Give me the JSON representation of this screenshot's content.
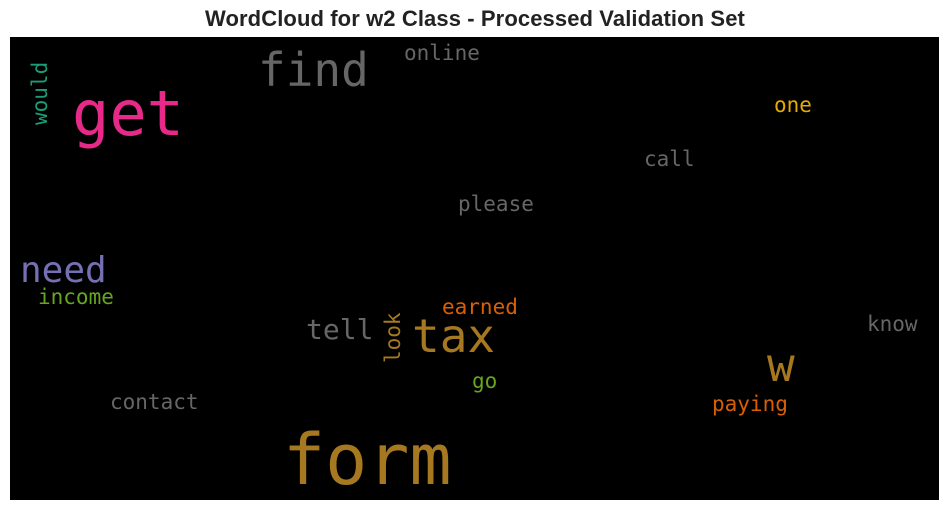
{
  "chart_data": {
    "type": "wordcloud",
    "title": "WordCloud for w2 Class - Processed Validation Set",
    "background": "#000000",
    "words": [
      {
        "text": "form",
        "color": "#a67820",
        "weight": 1.0,
        "vertical": false
      },
      {
        "text": "get",
        "color": "#e7298a",
        "weight": 0.85,
        "vertical": false
      },
      {
        "text": "tax",
        "color": "#a67820",
        "weight": 0.6,
        "vertical": false
      },
      {
        "text": "find",
        "color": "#666666",
        "weight": 0.58,
        "vertical": false
      },
      {
        "text": "w",
        "color": "#a67820",
        "weight": 0.57,
        "vertical": false
      },
      {
        "text": "need",
        "color": "#7570b3",
        "weight": 0.45,
        "vertical": false
      },
      {
        "text": "tell",
        "color": "#666666",
        "weight": 0.36,
        "vertical": false
      },
      {
        "text": "online",
        "color": "#666666",
        "weight": 0.28,
        "vertical": false
      },
      {
        "text": "would",
        "color": "#1b9e77",
        "weight": 0.28,
        "vertical": true
      },
      {
        "text": "one",
        "color": "#e6ab02",
        "weight": 0.28,
        "vertical": false
      },
      {
        "text": "call",
        "color": "#666666",
        "weight": 0.28,
        "vertical": false
      },
      {
        "text": "please",
        "color": "#666666",
        "weight": 0.28,
        "vertical": false
      },
      {
        "text": "income",
        "color": "#66a61e",
        "weight": 0.28,
        "vertical": false
      },
      {
        "text": "earned",
        "color": "#d95f02",
        "weight": 0.28,
        "vertical": false
      },
      {
        "text": "look",
        "color": "#a67820",
        "weight": 0.28,
        "vertical": true
      },
      {
        "text": "know",
        "color": "#666666",
        "weight": 0.28,
        "vertical": false
      },
      {
        "text": "go",
        "color": "#66a61e",
        "weight": 0.28,
        "vertical": false
      },
      {
        "text": "contact",
        "color": "#666666",
        "weight": 0.28,
        "vertical": false
      },
      {
        "text": "paying",
        "color": "#d95f02",
        "weight": 0.28,
        "vertical": false
      }
    ]
  }
}
